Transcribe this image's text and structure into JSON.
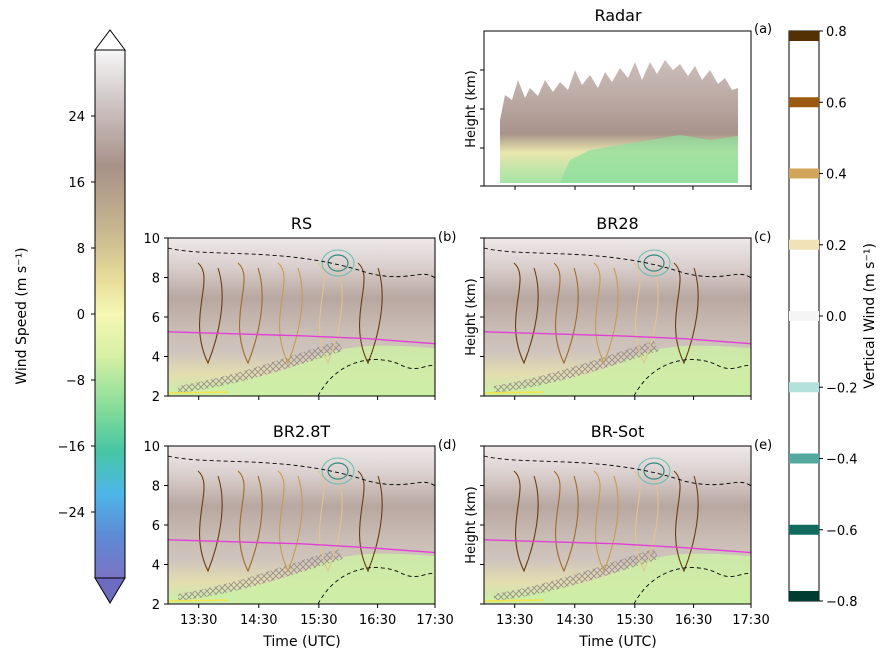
{
  "figure": {
    "colorbar_left": {
      "label": "Wind Speed (m s⁻¹)",
      "ticks": [
        24,
        16,
        8,
        0,
        -8,
        -16,
        -24
      ],
      "tick_labels": [
        "24",
        "16",
        "8",
        "0",
        "−8",
        "−16",
        "−24"
      ],
      "range": [
        -32,
        32
      ],
      "extend": "both"
    },
    "colorbar_right": {
      "label": "Vertical Wind (m s⁻¹)",
      "ticks": [
        0.8,
        0.6,
        0.4,
        0.2,
        0.0,
        -0.2,
        -0.4,
        -0.6,
        -0.8
      ],
      "tick_labels": [
        "0.8",
        "0.6",
        "0.4",
        "0.2",
        "0.0",
        "−0.2",
        "−0.4",
        "−0.6",
        "−0.8"
      ],
      "range": [
        -0.8,
        0.8
      ],
      "level_colors": [
        {
          "value": 0.8,
          "color": "#543005"
        },
        {
          "value": 0.6,
          "color": "#9a5a12"
        },
        {
          "value": 0.4,
          "color": "#d3a55a"
        },
        {
          "value": 0.2,
          "color": "#f1e2b8"
        },
        {
          "value": 0.0,
          "color": "#f5f5f5"
        },
        {
          "value": -0.2,
          "color": "#b3e2dc"
        },
        {
          "value": -0.4,
          "color": "#54a99f"
        },
        {
          "value": -0.6,
          "color": "#126b5f"
        },
        {
          "value": -0.8,
          "color": "#003c30"
        }
      ]
    },
    "x_tick_labels": [
      "13:30",
      "14:30",
      "15:30",
      "16:30",
      "17:30"
    ],
    "x_label": "Time (UTC)",
    "y_label": "Height (km)",
    "y_tick_labels": [
      "2",
      "4",
      "6",
      "8",
      "10"
    ]
  },
  "chart_data": [
    {
      "type": "heatmap",
      "panel": "(a)",
      "title": "Radar",
      "ylabel": "Height (km)",
      "y_ticks_labeled": false,
      "x_ticks_labeled": false
    },
    {
      "type": "heatmap",
      "panel": "(b)",
      "title": "RS",
      "ylim": [
        2,
        10
      ],
      "y_ticks": [
        2,
        4,
        6,
        8,
        10
      ],
      "freezing_level_km": [
        5.25,
        5.15,
        5.05,
        4.9,
        4.65
      ]
    },
    {
      "type": "heatmap",
      "panel": "(c)",
      "title": "BR28",
      "ylabel": "Height (km)",
      "ylim": [
        2,
        10
      ],
      "freezing_level_km": [
        5.25,
        5.15,
        5.05,
        4.9,
        4.65
      ]
    },
    {
      "type": "heatmap",
      "panel": "(d)",
      "title": "BR2.8T",
      "ylim": [
        2,
        10
      ],
      "y_ticks": [
        2,
        4,
        6,
        8,
        10
      ],
      "xlabel": "Time (UTC)",
      "x": [
        "13:30",
        "14:30",
        "15:30",
        "16:30",
        "17:30"
      ],
      "freezing_level_km": [
        5.25,
        5.15,
        5.05,
        4.85,
        4.6
      ]
    },
    {
      "type": "heatmap",
      "panel": "(e)",
      "title": "BR-Sot",
      "ylabel": "Height (km)",
      "ylim": [
        2,
        10
      ],
      "xlabel": "Time (UTC)",
      "x": [
        "13:30",
        "14:30",
        "15:30",
        "16:30",
        "17:30"
      ],
      "freezing_level_km": [
        5.25,
        5.15,
        5.05,
        4.85,
        4.6
      ]
    }
  ]
}
